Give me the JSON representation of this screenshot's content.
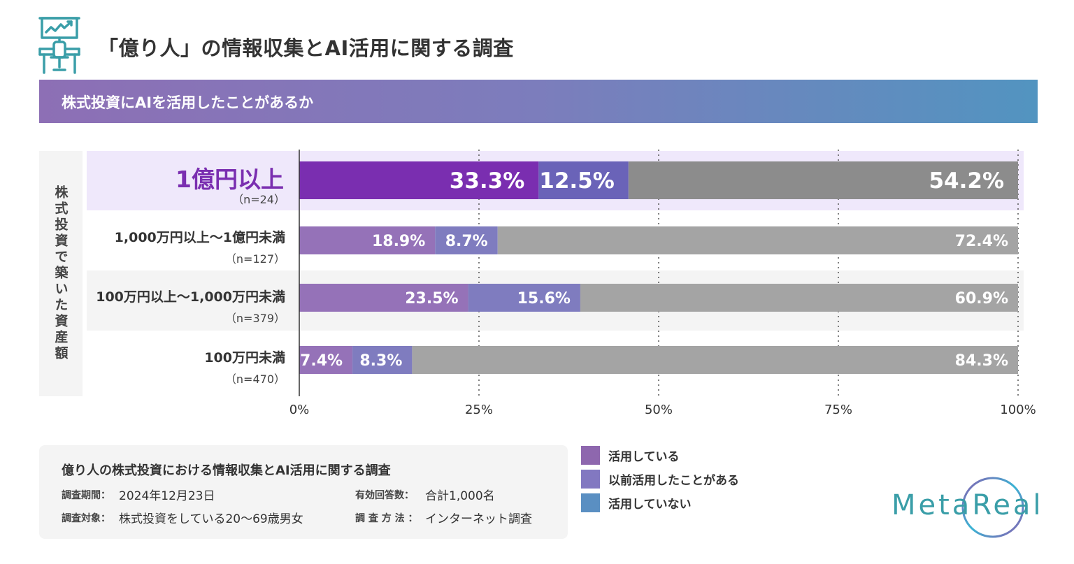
{
  "header": {
    "title": "「億り人」の情報収集とAI活用に関する調査",
    "section_title": "株式投資にAIを活用したことがあるか"
  },
  "chart_data": {
    "type": "bar",
    "orientation": "horizontal",
    "stacked": true,
    "title": "株式投資にAIを活用したことがあるか",
    "ylabel": "株式投資で築いた資産額",
    "xlabel": "",
    "xlim": [
      0,
      100
    ],
    "x_ticks": [
      "0%",
      "25%",
      "50%",
      "75%",
      "100%"
    ],
    "grid": "vertical-dotted",
    "categories": [
      {
        "label": "1億円以上",
        "n": "（n=24）",
        "highlight": true
      },
      {
        "label": "1,000万円以上〜1億円未満",
        "n": "（n=127）"
      },
      {
        "label": "100万円以上〜1,000万円未満",
        "n": "（n=379）"
      },
      {
        "label": "100万円未満",
        "n": "（n=470）"
      }
    ],
    "series": [
      {
        "name": "活用している",
        "values": [
          33.3,
          18.9,
          23.5,
          7.4
        ],
        "labels": [
          "33.3%",
          "18.9%",
          "23.5%",
          "7.4%"
        ]
      },
      {
        "name": "以前活用したことがある",
        "values": [
          12.5,
          8.7,
          15.6,
          8.3
        ],
        "labels": [
          "12.5%",
          "8.7%",
          "15.6%",
          "8.3%"
        ]
      },
      {
        "name": "活用していない",
        "values": [
          54.2,
          72.4,
          60.9,
          84.3
        ],
        "labels": [
          "54.2%",
          "72.4%",
          "60.9%",
          "84.3%"
        ]
      }
    ],
    "legend_position": "bottom-center"
  },
  "colors": {
    "series_highlight": [
      "#7a2eb0",
      "#6a63b8",
      "#8c8c8c"
    ],
    "series_normal": [
      "#9572b8",
      "#7f7cbf",
      "#a4a4a4"
    ],
    "legend": [
      "#8e67ae",
      "#8278c1",
      "#5a8fc2"
    ],
    "highlight_row_bg": "#efe8fb",
    "alt_row_bg": "#f4f4f4",
    "brand": "#3a9ea8"
  },
  "legend": {
    "items": [
      "活用している",
      "以前活用したことがある",
      "活用していない"
    ]
  },
  "info": {
    "title": "億り人の株式投資における情報収集とAI活用に関する調査",
    "period_key": "調査期間：",
    "period_val": "2024年12月23日",
    "responses_key": "有効回答数：",
    "responses_val": "合計1,000名",
    "target_key": "調査対象：",
    "target_val": "株式投資をしている20〜69歳男女",
    "method_key": "調 査 方 法 ：",
    "method_val": "インターネット調査"
  },
  "brand": {
    "name": "MetaReal"
  }
}
